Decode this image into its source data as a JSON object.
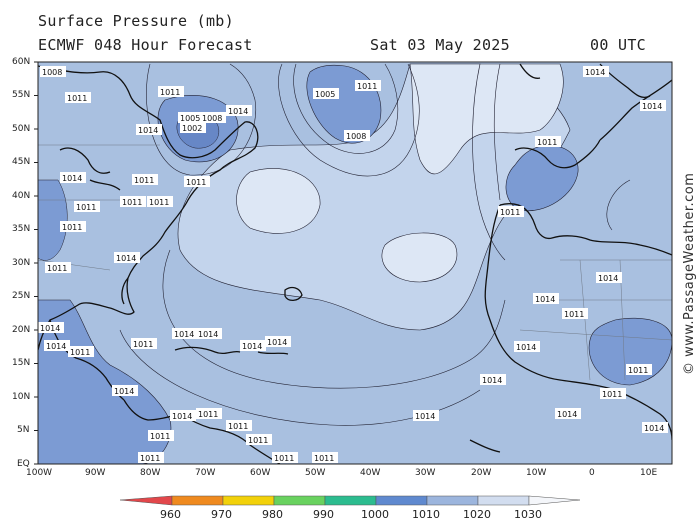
{
  "header": {
    "title": "Surface Pressure (mb)",
    "model": "ECMWF 048 Hour Forecast",
    "date": "Sat 03 May 2025",
    "time": "00 UTC"
  },
  "map": {
    "lat_labels": [
      "60N",
      "55N",
      "50N",
      "45N",
      "40N",
      "35N",
      "30N",
      "25N",
      "20N",
      "15N",
      "10N",
      "5N",
      "EQ"
    ],
    "lon_labels": [
      "100W",
      "90W",
      "80W",
      "70W",
      "60W",
      "50W",
      "40W",
      "30W",
      "20W",
      "10W",
      "0",
      "10E"
    ],
    "pressure_labels": {
      "high": "1014",
      "trough": "1011",
      "low": "1005",
      "low2": "1002",
      "low3": "1008"
    },
    "colors": {
      "ocean_base": "#a9c0e0",
      "contour_1014": "#c3d4ec",
      "high_core": "#dde7f5",
      "low_fill": "#7c9bd3",
      "deep_low": "#6787c6",
      "land_line": "#111111"
    }
  },
  "colorbar": {
    "labels": [
      "960",
      "970",
      "980",
      "990",
      "1000",
      "1010",
      "1020",
      "1030"
    ],
    "colors": [
      "#e2474b",
      "#ef8a1f",
      "#f2d10a",
      "#69d25f",
      "#2cbc8f",
      "#5f89cf",
      "#9cb5dd",
      "#d2ddef",
      "#f4f6fa"
    ]
  },
  "credit": "© www.PassageWeather.com"
}
